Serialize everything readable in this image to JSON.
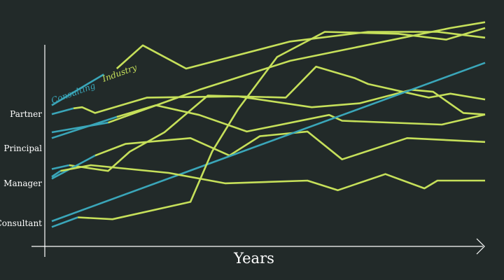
{
  "colors": {
    "background": "#222a29",
    "consulting": "#3aa6b9",
    "industry": "#c6e05a",
    "axis": "#ffffff"
  },
  "chart_data": {
    "type": "line",
    "xlabel": "Years",
    "ylabel": "",
    "y_categories": [
      "Consultant",
      "Manager",
      "Principal",
      "Partner"
    ],
    "legend": [
      {
        "label": "Consulting",
        "color": "#3aa6b9"
      },
      {
        "label": "Industry",
        "color": "#c6e05a"
      }
    ],
    "series": [
      {
        "group": "Consulting",
        "color": "#3aa6b9",
        "points": [
          [
            0.0,
            3.0
          ],
          [
            1.2,
            3.8
          ]
        ]
      },
      {
        "group": "Industry",
        "color": "#c6e05a",
        "points": [
          [
            1.5,
            3.95
          ],
          [
            2.1,
            4.55
          ],
          [
            3.1,
            3.95
          ],
          [
            5.5,
            4.65
          ],
          [
            7.3,
            4.9
          ],
          [
            8.9,
            4.9
          ],
          [
            10.0,
            4.75
          ]
        ]
      },
      {
        "group": "Consulting",
        "color": "#3aa6b9",
        "points": [
          [
            0.0,
            2.77
          ],
          [
            0.5,
            2.92
          ]
        ]
      },
      {
        "group": "Industry",
        "color": "#c6e05a",
        "points": [
          [
            0.5,
            2.92
          ],
          [
            0.7,
            2.95
          ],
          [
            1.0,
            2.8
          ],
          [
            2.2,
            3.2
          ],
          [
            4.3,
            3.23
          ],
          [
            6.0,
            2.95
          ],
          [
            7.1,
            3.05
          ],
          [
            8.3,
            3.4
          ],
          [
            8.8,
            3.35
          ],
          [
            9.5,
            2.8
          ],
          [
            10.0,
            2.76
          ]
        ]
      },
      {
        "group": "Consulting",
        "color": "#3aa6b9",
        "points": [
          [
            0.0,
            2.3
          ],
          [
            1.3,
            2.55
          ]
        ]
      },
      {
        "group": "Industry",
        "color": "#c6e05a",
        "points": [
          [
            1.3,
            2.55
          ],
          [
            3.4,
            3.4
          ],
          [
            5.5,
            4.15
          ],
          [
            9.2,
            5.0
          ],
          [
            10.0,
            5.15
          ]
        ]
      },
      {
        "group": "Consulting",
        "color": "#3aa6b9",
        "points": [
          [
            0.0,
            2.15
          ],
          [
            1.5,
            2.7
          ]
        ]
      },
      {
        "group": "Industry",
        "color": "#c6e05a",
        "points": [
          [
            1.5,
            2.7
          ],
          [
            2.4,
            3.0
          ],
          [
            3.4,
            2.75
          ],
          [
            4.5,
            2.32
          ],
          [
            6.4,
            2.75
          ],
          [
            6.7,
            2.6
          ],
          [
            9.0,
            2.5
          ],
          [
            10.0,
            2.76
          ]
        ]
      },
      {
        "group": "Consulting",
        "color": "#3aa6b9",
        "points": [
          [
            0.0,
            1.35
          ],
          [
            0.4,
            1.45
          ]
        ]
      },
      {
        "group": "Industry",
        "color": "#c6e05a",
        "points": [
          [
            0.4,
            1.45
          ],
          [
            1.3,
            1.3
          ],
          [
            1.8,
            1.8
          ],
          [
            2.6,
            2.3
          ],
          [
            3.6,
            3.25
          ],
          [
            5.4,
            3.2
          ],
          [
            6.1,
            4.0
          ],
          [
            7.0,
            3.7
          ],
          [
            7.3,
            3.55
          ],
          [
            8.7,
            3.2
          ],
          [
            9.2,
            3.3
          ],
          [
            10.0,
            3.15
          ]
        ]
      },
      {
        "group": "Consulting",
        "color": "#3aa6b9",
        "points": [
          [
            0.0,
            1.1
          ],
          [
            1.0,
            1.7
          ]
        ]
      },
      {
        "group": "Industry",
        "color": "#c6e05a",
        "points": [
          [
            1.0,
            1.7
          ],
          [
            1.7,
            2.0
          ],
          [
            3.2,
            2.15
          ],
          [
            4.1,
            1.7
          ],
          [
            4.8,
            2.2
          ],
          [
            5.9,
            2.32
          ],
          [
            6.7,
            1.6
          ],
          [
            8.2,
            2.15
          ],
          [
            10.0,
            2.05
          ]
        ]
      },
      {
        "group": "Consulting",
        "color": "#3aa6b9",
        "points": [
          [
            0.0,
            0.0
          ],
          [
            10.0,
            4.1
          ]
        ]
      },
      {
        "group": "Consulting",
        "color": "#3aa6b9",
        "points": [
          [
            0.0,
            1.15
          ],
          [
            0.2,
            1.3
          ]
        ]
      },
      {
        "group": "Industry",
        "color": "#c6e05a",
        "points": [
          [
            0.2,
            1.3
          ],
          [
            0.9,
            1.45
          ],
          [
            2.7,
            1.25
          ],
          [
            4.0,
            0.98
          ],
          [
            5.9,
            1.05
          ],
          [
            6.6,
            0.8
          ],
          [
            7.7,
            1.22
          ],
          [
            8.6,
            0.85
          ],
          [
            8.9,
            1.05
          ],
          [
            10.0,
            1.05
          ]
        ]
      },
      {
        "group": "Consulting",
        "color": "#3aa6b9",
        "points": [
          [
            0.0,
            -0.15
          ],
          [
            0.6,
            0.1
          ]
        ]
      },
      {
        "group": "Industry",
        "color": "#c6e05a",
        "points": [
          [
            0.6,
            0.1
          ],
          [
            1.4,
            0.05
          ],
          [
            3.2,
            0.5
          ],
          [
            3.7,
            1.8
          ],
          [
            4.3,
            2.9
          ],
          [
            5.2,
            4.25
          ],
          [
            6.3,
            4.9
          ],
          [
            8.0,
            4.85
          ],
          [
            9.1,
            4.7
          ],
          [
            10.0,
            5.0
          ]
        ]
      }
    ]
  }
}
